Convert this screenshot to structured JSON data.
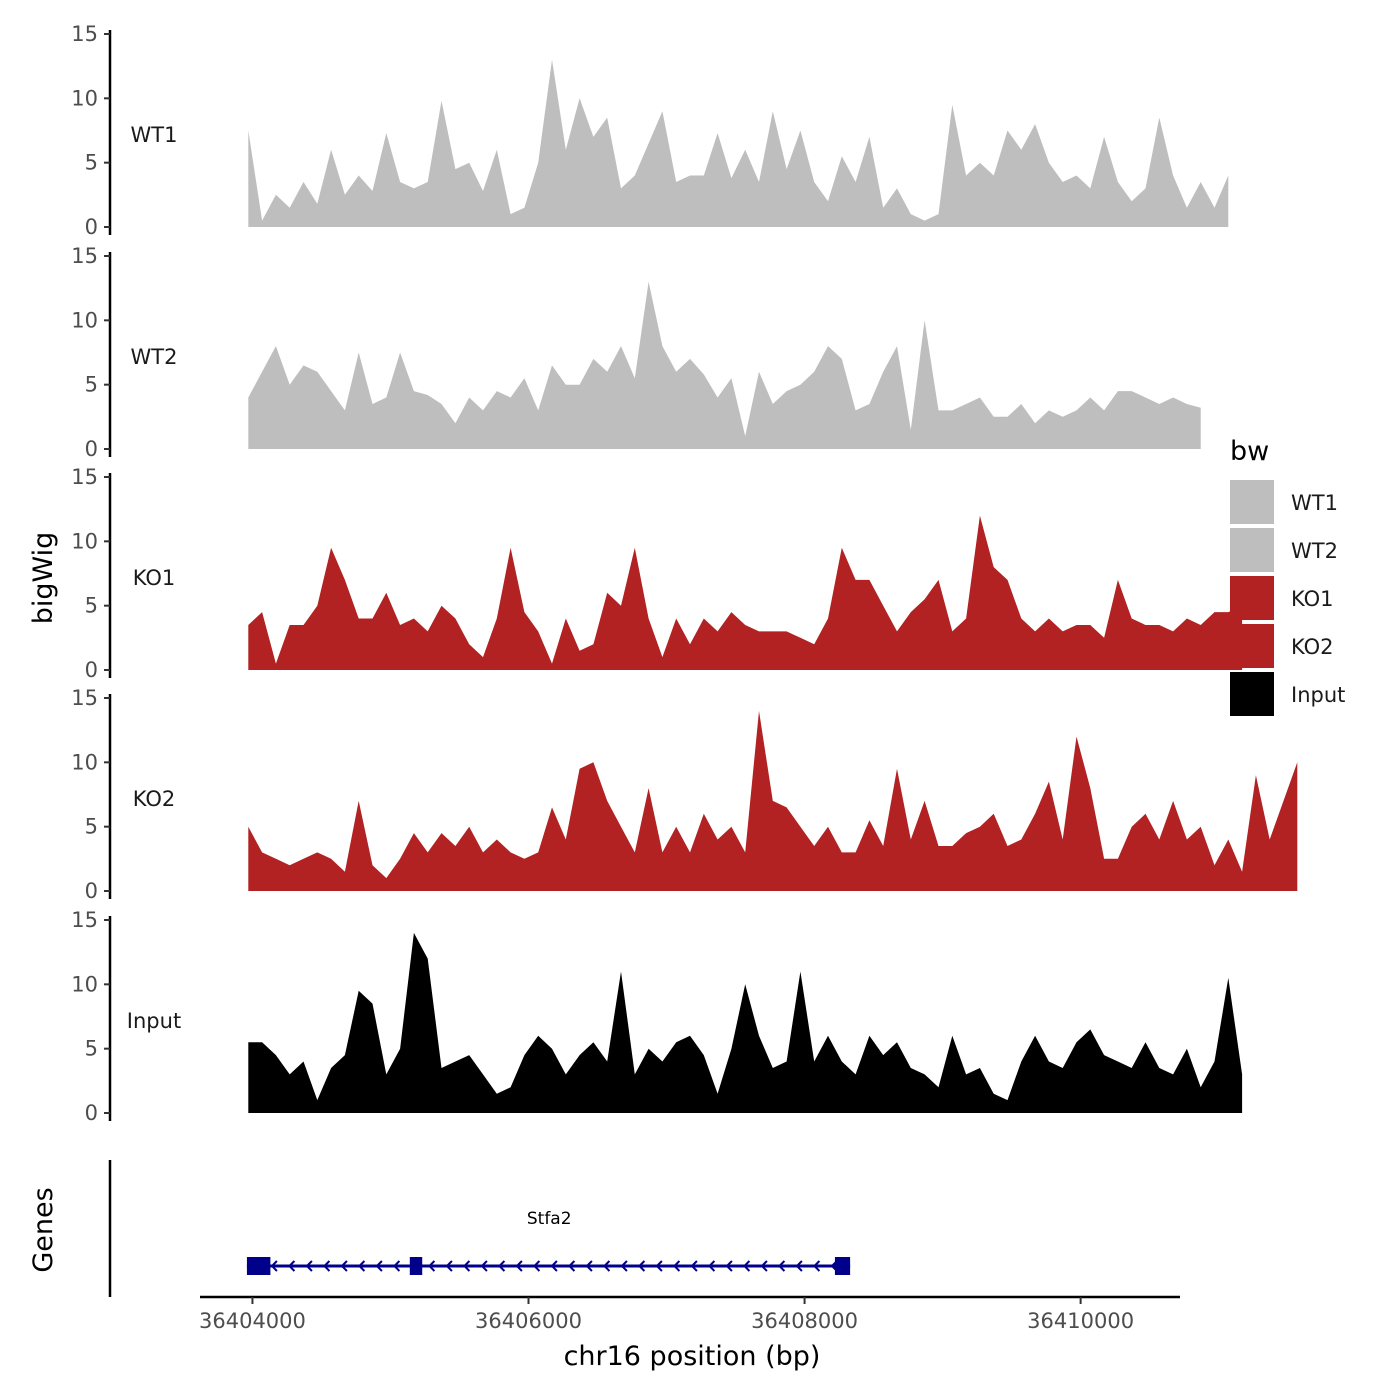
{
  "chart_data": {
    "type": "area",
    "title": "",
    "xlabel": "chr16 position (bp)",
    "ylabel": "bigWig",
    "genes_label": "Genes",
    "xlim": [
      36403620,
      36410720
    ],
    "ylim": [
      0,
      15
    ],
    "x_ticks": [
      36404000,
      36406000,
      36408000,
      36410000
    ],
    "x_tick_labels": [
      "36404000",
      "36406000",
      "36408000",
      "36410000"
    ],
    "y_ticks": [
      0,
      5,
      10,
      15
    ],
    "y_tick_labels": [
      "0",
      "5",
      "10",
      "15"
    ],
    "x_start": 36403970,
    "x_step": 100,
    "legend": {
      "title": "bw",
      "position": "right",
      "entries": [
        {
          "label": "WT1",
          "color": "#bebebe"
        },
        {
          "label": "WT2",
          "color": "#bebebe"
        },
        {
          "label": "KO1",
          "color": "#b22222"
        },
        {
          "label": "KO2",
          "color": "#b22222"
        },
        {
          "label": "Input",
          "color": "#000000"
        }
      ]
    },
    "series": [
      {
        "name": "WT1",
        "color": "#bebebe",
        "values": [
          7.5,
          0.5,
          2.5,
          1.5,
          3.5,
          1.8,
          6,
          2.5,
          4,
          2.8,
          7.3,
          3.5,
          3,
          3.5,
          9.8,
          4.5,
          5,
          2.8,
          6,
          1,
          1.5,
          5,
          13,
          6,
          10,
          7,
          8.5,
          3,
          4,
          6.5,
          9,
          3.5,
          4,
          4,
          7.3,
          3.8,
          6,
          3.5,
          9,
          4.5,
          7.5,
          3.5,
          2,
          5.5,
          3.5,
          7,
          1.5,
          3,
          1,
          0.5,
          1,
          9.5,
          4,
          5,
          4,
          7.5,
          6,
          8,
          5,
          3.5,
          4,
          3,
          7,
          3.5,
          2,
          3,
          8.5,
          4,
          1.5,
          3.5,
          1.5,
          4
        ]
      },
      {
        "name": "WT2",
        "color": "#bebebe",
        "values": [
          4,
          6,
          8,
          5,
          6.5,
          6,
          4.5,
          3,
          7.5,
          3.5,
          4,
          7.5,
          4.5,
          4.2,
          3.5,
          2,
          4,
          3,
          4.5,
          4,
          5.5,
          3,
          6.5,
          5,
          5,
          7,
          6,
          8,
          5.5,
          13,
          8,
          6,
          7,
          5.8,
          4,
          5.5,
          1,
          6,
          3.5,
          4.5,
          5,
          6,
          8,
          7,
          3,
          3.5,
          6,
          8,
          1.5,
          10,
          3,
          3,
          3.5,
          4,
          2.5,
          2.5,
          3.5,
          2,
          3,
          2.5,
          3,
          4,
          3,
          4.5,
          4.5,
          4,
          3.5,
          4,
          3.5,
          3.2
        ]
      },
      {
        "name": "KO1",
        "color": "#b22222",
        "values": [
          3.5,
          4.5,
          0.5,
          3.5,
          3.5,
          5,
          9.5,
          7,
          4,
          4,
          6,
          3.5,
          4,
          3,
          5,
          4,
          2,
          1,
          4,
          9.5,
          4.5,
          3,
          0.5,
          4,
          1.5,
          2,
          6,
          5,
          9.5,
          4,
          1,
          4,
          2,
          4,
          3,
          4.5,
          3.5,
          3,
          3,
          3,
          2.5,
          2,
          4,
          9.5,
          7,
          7,
          5,
          3,
          4.5,
          5.5,
          7,
          3,
          4,
          12,
          8,
          7,
          4,
          3,
          4,
          3,
          3.5,
          3.5,
          2.5,
          7,
          4,
          3.5,
          3.5,
          3,
          4,
          3.5,
          4.5,
          4.5,
          5
        ]
      },
      {
        "name": "KO2",
        "color": "#b22222",
        "values": [
          5,
          3,
          2.5,
          2,
          2.5,
          3,
          2.5,
          1.5,
          7,
          2,
          1,
          2.5,
          4.5,
          3,
          4.5,
          3.5,
          5,
          3,
          4,
          3,
          2.5,
          3,
          6.5,
          4,
          9.5,
          10,
          7,
          5,
          3,
          8,
          3,
          5,
          3,
          6,
          4,
          5,
          3,
          14,
          7,
          6.5,
          5,
          3.5,
          5,
          3,
          3,
          5.5,
          3.5,
          9.5,
          4,
          7,
          3.5,
          3.5,
          4.5,
          5,
          6,
          3.5,
          4,
          6,
          8.5,
          4,
          12,
          8,
          2.5,
          2.5,
          5,
          6,
          4,
          7,
          4,
          5,
          2,
          4,
          1.5,
          9,
          4,
          7,
          10
        ]
      },
      {
        "name": "Input",
        "color": "#000000",
        "values": [
          5.5,
          5.5,
          4.5,
          3,
          4,
          1,
          3.5,
          4.5,
          9.5,
          8.5,
          3,
          5,
          14,
          12,
          3.5,
          4,
          4.5,
          3,
          1.5,
          2,
          4.5,
          6,
          5,
          3,
          4.5,
          5.5,
          4,
          11,
          3,
          5,
          4,
          5.5,
          6,
          4.5,
          1.5,
          5,
          10,
          6,
          3.5,
          4,
          11,
          4,
          6,
          4,
          3,
          6,
          4.5,
          5.5,
          3.5,
          3,
          2,
          6,
          3,
          3.5,
          1.5,
          1,
          4,
          6,
          4,
          3.5,
          5.5,
          6.5,
          4.5,
          4,
          3.5,
          5.5,
          3.5,
          3,
          5,
          2,
          4,
          10.5,
          3
        ]
      }
    ],
    "genes": [
      {
        "name": "Stfa2",
        "start": 36404000,
        "end": 36408300,
        "strand": "-",
        "exons": [
          [
            36403960,
            36404130
          ],
          [
            36405140,
            36405230
          ],
          [
            36408220,
            36408330
          ]
        ]
      }
    ]
  }
}
